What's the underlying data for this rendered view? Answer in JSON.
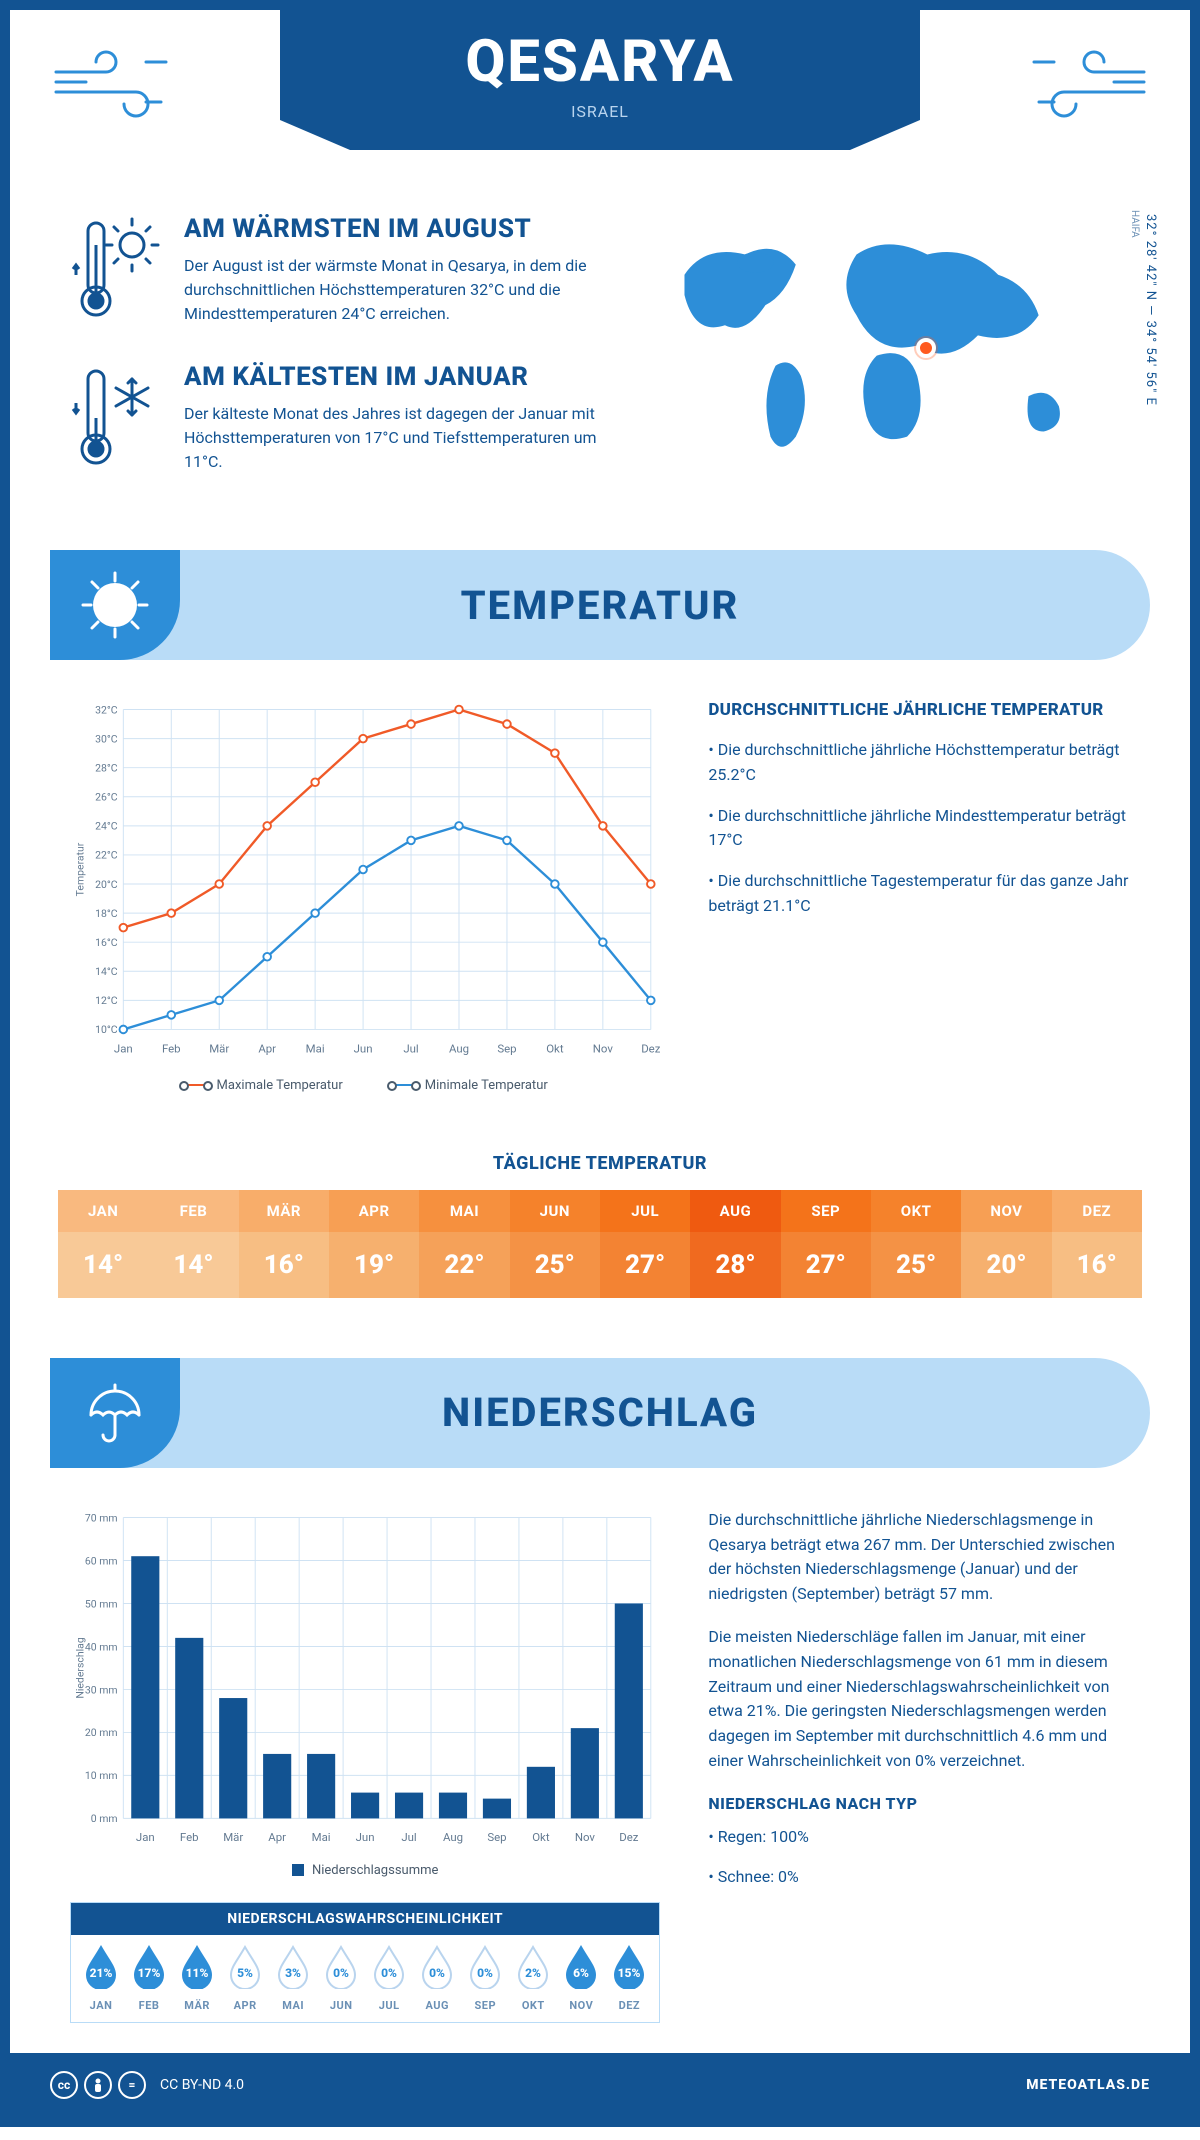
{
  "header": {
    "title": "QESARYA",
    "subtitle": "ISRAEL",
    "banner_color": "#125392"
  },
  "coords": "32° 28' 42\" N — 34° 54' 56\" E",
  "region_label": "HAIFA",
  "map": {
    "land_color": "#2d8ed8",
    "marker_left_pct": 56,
    "marker_top_pct": 42
  },
  "fact_warm": {
    "title": "AM WÄRMSTEN IM AUGUST",
    "text": "Der August ist der wärmste Monat in Qesarya, in dem die durchschnittlichen Höchsttemperaturen 32°C und die Mindesttemperaturen 24°C erreichen."
  },
  "fact_cold": {
    "title": "AM KÄLTESTEN IM JANUAR",
    "text": "Der kälteste Monat des Jahres ist dagegen der Januar mit Höchsttemperaturen von 17°C und Tiefsttemperaturen um 11°C."
  },
  "temp_section_title": "TEMPERATUR",
  "precip_section_title": "NIEDERSCHLAG",
  "temp_chart": {
    "months": [
      "Jan",
      "Feb",
      "Mär",
      "Apr",
      "Mai",
      "Jun",
      "Jul",
      "Aug",
      "Sep",
      "Okt",
      "Nov",
      "Dez"
    ],
    "max_series": [
      17,
      18,
      20,
      24,
      27,
      30,
      31,
      32,
      31,
      29,
      24,
      20
    ],
    "min_series": [
      10,
      11,
      12,
      15,
      18,
      21,
      23,
      24,
      23,
      20,
      16,
      12
    ],
    "max_color": "#f05a28",
    "min_color": "#2d8ed8",
    "ylim": [
      10,
      32
    ],
    "ytick_step": 2,
    "y_unit": "°C",
    "y_title": "Temperatur",
    "grid_color": "#cfe2f3",
    "legend_max": "Maximale Temperatur",
    "legend_min": "Minimale Temperatur"
  },
  "temp_notes": {
    "title": "DURCHSCHNITTLICHE JÄHRLICHE TEMPERATUR",
    "items": [
      "• Die durchschnittliche jährliche Höchsttemperatur beträgt 25.2°C",
      "• Die durchschnittliche jährliche Mindesttemperatur beträgt 17°C",
      "• Die durchschnittliche Tagestemperatur für das ganze Jahr beträgt 21.1°C"
    ]
  },
  "daily_temp": {
    "title": "TÄGLICHE TEMPERATUR",
    "months": [
      "JAN",
      "FEB",
      "MÄR",
      "APR",
      "MAI",
      "JUN",
      "JUL",
      "AUG",
      "SEP",
      "OKT",
      "NOV",
      "DEZ"
    ],
    "values": [
      "14°",
      "14°",
      "16°",
      "19°",
      "22°",
      "25°",
      "27°",
      "28°",
      "27°",
      "25°",
      "20°",
      "16°"
    ],
    "head_colors": [
      "#f9b97f",
      "#f9b97f",
      "#f8ad6a",
      "#f79f54",
      "#f6903e",
      "#f5822b",
      "#f4731a",
      "#ef5a10",
      "#f4731a",
      "#f5822b",
      "#f79f54",
      "#f8ad6a"
    ],
    "val_colors": [
      "#f8c997",
      "#f8c997",
      "#f7be83",
      "#f6b06e",
      "#f5a159",
      "#f49245",
      "#f38333",
      "#f06a1f",
      "#f38333",
      "#f49245",
      "#f6b06e",
      "#f7be83"
    ]
  },
  "precip_chart": {
    "months": [
      "Jan",
      "Feb",
      "Mär",
      "Apr",
      "Mai",
      "Jun",
      "Jul",
      "Aug",
      "Sep",
      "Okt",
      "Nov",
      "Dez"
    ],
    "values": [
      61,
      42,
      28,
      15,
      15,
      6,
      6,
      6,
      4.6,
      12,
      21,
      50
    ],
    "bar_color": "#125392",
    "grid_color": "#cfe2f3",
    "ylim": [
      0,
      70
    ],
    "ytick_step": 10,
    "y_unit": " mm",
    "y_title": "Niederschlag",
    "legend": "Niederschlagssumme"
  },
  "precip_text": {
    "p1": "Die durchschnittliche jährliche Niederschlagsmenge in Qesarya beträgt etwa 267 mm. Der Unterschied zwischen der höchsten Niederschlagsmenge (Januar) und der niedrigsten (September) beträgt 57 mm.",
    "p2": "Die meisten Niederschläge fallen im Januar, mit einer monatlichen Niederschlagsmenge von 61 mm in diesem Zeitraum und einer Niederschlagswahrscheinlichkeit von etwa 21%. Die geringsten Niederschlagsmengen werden dagegen im September mit durchschnittlich 4.6 mm und einer Wahrscheinlichkeit von 0% verzeichnet.",
    "type_title": "NIEDERSCHLAG NACH TYP",
    "type_items": [
      "• Regen: 100%",
      "• Schnee: 0%"
    ]
  },
  "precip_prob": {
    "title": "NIEDERSCHLAGSWAHRSCHEINLICHKEIT",
    "months": [
      "JAN",
      "FEB",
      "MÄR",
      "APR",
      "MAI",
      "JUN",
      "JUL",
      "AUG",
      "SEP",
      "OKT",
      "NOV",
      "DEZ"
    ],
    "pcts": [
      "21%",
      "17%",
      "11%",
      "5%",
      "3%",
      "0%",
      "0%",
      "0%",
      "0%",
      "2%",
      "6%",
      "15%"
    ],
    "filled": [
      true,
      true,
      true,
      false,
      false,
      false,
      false,
      false,
      false,
      false,
      true,
      true
    ],
    "fill_color": "#2d8ed8",
    "outline_color": "#b9d4ee"
  },
  "footer": {
    "license": "CC BY-ND 4.0",
    "brand": "METEOATLAS.DE"
  }
}
